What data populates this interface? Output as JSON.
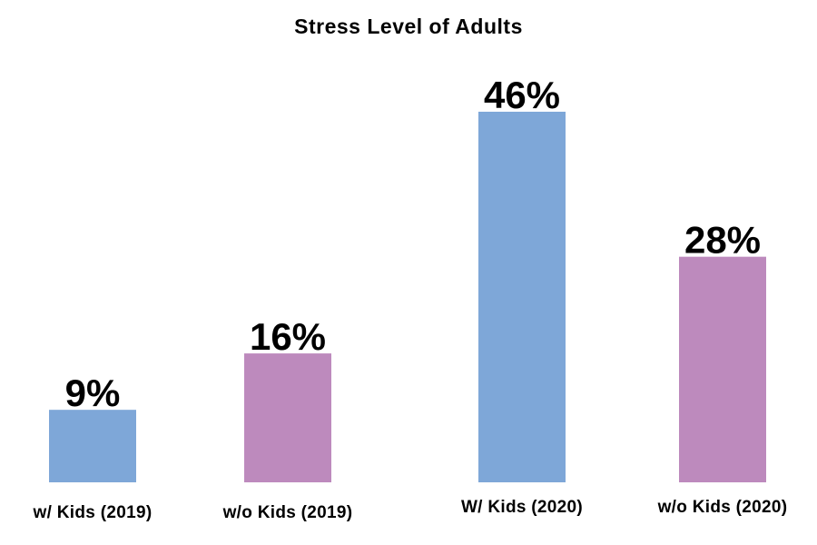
{
  "chart_data": {
    "type": "bar",
    "title": "Stress Level of Adults",
    "xlabel": "",
    "ylabel": "",
    "categories": [
      "w/ Kids (2019)",
      "w/o Kids (2019)",
      "W/ Kids (2020)",
      "w/o Kids (2020)"
    ],
    "values": [
      9,
      16,
      46,
      28
    ],
    "value_labels": [
      "9%",
      "16%",
      "46%",
      "28%"
    ],
    "unit": "%",
    "ylim": [
      0,
      46
    ],
    "grid": false,
    "legend": "none",
    "colors": [
      "#7ea7d8",
      "#bd8abd",
      "#7ea7d8",
      "#bd8abd"
    ],
    "axis_color": "#000000"
  }
}
